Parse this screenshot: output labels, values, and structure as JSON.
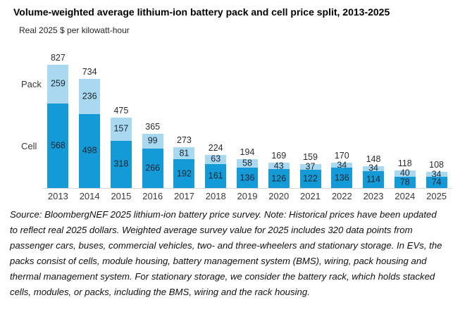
{
  "chart_data": {
    "type": "bar",
    "stacked": true,
    "title": "Volume-weighted average lithium-ion battery pack and cell price split, 2013-2025",
    "ylabel": "Real 2025 $ per kilowatt-hour",
    "xlabel": "",
    "categories": [
      "2013",
      "2014",
      "2015",
      "2016",
      "2017",
      "2018",
      "2019",
      "2020",
      "2021",
      "2022",
      "2023",
      "2024",
      "2025"
    ],
    "series": [
      {
        "name": "Pack",
        "color": "#a9d9f0",
        "values": [
          259,
          236,
          157,
          99,
          81,
          63,
          58,
          43,
          37,
          34,
          34,
          40,
          34
        ]
      },
      {
        "name": "Cell",
        "color": "#149ad6",
        "values": [
          568,
          498,
          318,
          266,
          192,
          161,
          136,
          126,
          122,
          136,
          114,
          78,
          74
        ]
      }
    ],
    "totals": [
      827,
      734,
      475,
      365,
      273,
      224,
      194,
      169,
      159,
      170,
      148,
      118,
      108
    ],
    "ylim": [
      0,
      827
    ],
    "grid": false,
    "legend_position": "left-inline",
    "side_labels": {
      "pack": "Pack",
      "cell": "Cell"
    },
    "value_labels": "segment values inside bars, totals above bars"
  },
  "footer": {
    "text": "Source: BloombergNEF 2025 lithium-ion battery price survey. Note: Historical prices have been updated\nto reflect real 2025 dollars. Weighted average survey value for 2025 includes 320 data points from\npassenger cars, buses, commercial vehicles, two- and three-wheelers and stationary storage.  In EVs, the\npacks consist of cells, module housing, battery management system (BMS), wiring, pack housing and\nthermal management system. For stationary storage, we consider the battery rack, which holds stacked\ncells, modules, or packs, including the BMS, wiring and the rack housing."
  },
  "colors": {
    "pack_segment": "#a9d9f0",
    "cell_segment": "#149ad6",
    "axis_line": "#d9d9d9",
    "label_text": "#3a3a3a"
  }
}
